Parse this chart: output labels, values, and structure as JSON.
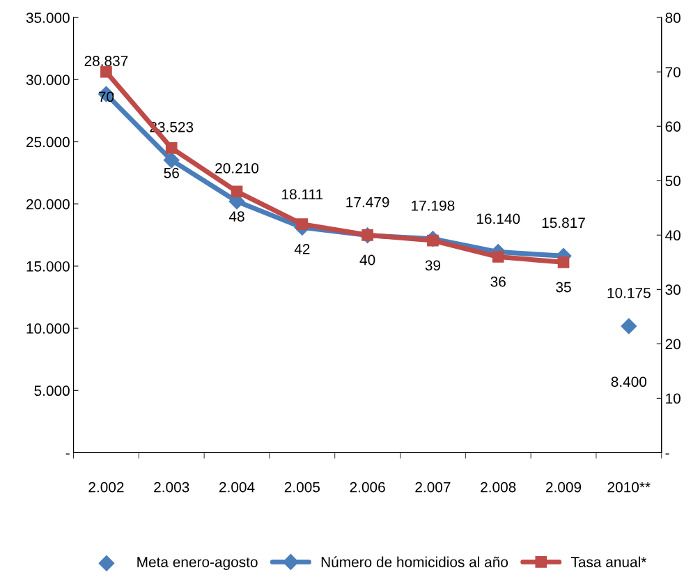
{
  "chart_data": {
    "type": "line",
    "categories": [
      "2.002",
      "2.003",
      "2.004",
      "2.005",
      "2.006",
      "2.007",
      "2.008",
      "2.009",
      "2010**"
    ],
    "series": [
      {
        "name": "Meta enero-agosto",
        "type": "scatter",
        "color": "#4a7ebb",
        "marker": "diamond",
        "values": [
          null,
          null,
          null,
          null,
          null,
          null,
          null,
          null,
          10175
        ],
        "value_labels": [
          null,
          null,
          null,
          null,
          null,
          null,
          null,
          null,
          "10.175"
        ]
      },
      {
        "name": "Número de homicidios al año",
        "color": "#4a7ebb",
        "marker": "diamond",
        "values": [
          28837,
          23523,
          20210,
          18111,
          17479,
          17198,
          16140,
          15817,
          null
        ],
        "value_labels": [
          "28.837",
          "23.523",
          "20.210",
          "18.111",
          "17.479",
          "17.198",
          "16.140",
          "15.817",
          null
        ]
      },
      {
        "name": "Tasa anual*",
        "color": "#be4b48",
        "marker": "square",
        "axis": "y2",
        "values": [
          70,
          56,
          48,
          42,
          40,
          39,
          36,
          35,
          null
        ],
        "value_labels": [
          "70",
          "56",
          "48",
          "42",
          "40",
          "39",
          "36",
          "35",
          null
        ]
      }
    ],
    "ylim": [
      0,
      35000
    ],
    "yticks": [
      {
        "value": 0,
        "label": "-"
      },
      {
        "value": 5000,
        "label": "5.000"
      },
      {
        "value": 10000,
        "label": "10.000"
      },
      {
        "value": 15000,
        "label": "15.000"
      },
      {
        "value": 20000,
        "label": "20.000"
      },
      {
        "value": 25000,
        "label": "25.000"
      },
      {
        "value": 30000,
        "label": "30.000"
      },
      {
        "value": 35000,
        "label": "35.000"
      }
    ],
    "y2lim": [
      0,
      80
    ],
    "y2ticks": [
      {
        "value": 0,
        "label": "-"
      },
      10,
      20,
      30,
      40,
      50,
      60,
      70,
      80
    ],
    "annotations": [
      "8.400"
    ],
    "legend": "bottom",
    "grid": false,
    "line_style": "solid"
  }
}
